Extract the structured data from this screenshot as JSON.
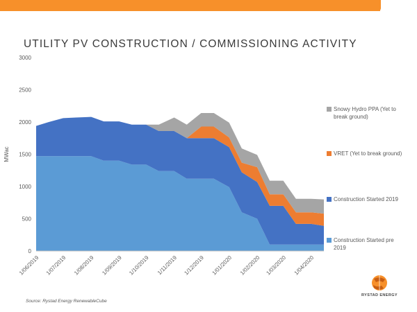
{
  "header": {
    "accent_color": "#f7902a"
  },
  "chart_data": {
    "type": "area",
    "stacked": true,
    "title": "UTILITY PV CONSTRUCTION / COMMISSIONING ACTIVITY",
    "ylabel": "MWac",
    "xlabel": "",
    "ylim": [
      0,
      3000
    ],
    "yticks": [
      0,
      500,
      1000,
      1500,
      2000,
      2500,
      3000
    ],
    "x_tick_labels": [
      "1/06/2019",
      "1/07/2019",
      "1/08/2019",
      "1/09/2019",
      "1/10/2019",
      "1/11/2019",
      "1/12/2019",
      "1/01/2020",
      "1/02/2020",
      "1/03/2020",
      "1/04/2020"
    ],
    "x": [
      "2019-06-01",
      "2019-06-15",
      "2019-07-01",
      "2019-07-15",
      "2019-08-01",
      "2019-08-15",
      "2019-09-01",
      "2019-09-15",
      "2019-10-01",
      "2019-10-15",
      "2019-11-01",
      "2019-11-15",
      "2019-12-01",
      "2019-12-15",
      "2020-01-01",
      "2020-01-15",
      "2020-02-01",
      "2020-02-15",
      "2020-03-01",
      "2020-03-15",
      "2020-04-01",
      "2020-04-15"
    ],
    "grid": false,
    "legend_position": "right",
    "series": [
      {
        "name": "Construction Started pre 2019",
        "color": "#5b9bd5",
        "values": [
          1470,
          1470,
          1470,
          1470,
          1470,
          1400,
          1400,
          1340,
          1340,
          1240,
          1240,
          1120,
          1120,
          1120,
          990,
          600,
          500,
          100,
          100,
          100,
          100,
          100
        ]
      },
      {
        "name": "Construction Started 2019",
        "color": "#4472c4",
        "values": [
          470,
          530,
          590,
          600,
          610,
          610,
          610,
          620,
          620,
          620,
          620,
          630,
          630,
          630,
          620,
          620,
          570,
          600,
          600,
          320,
          320,
          290
        ]
      },
      {
        "name": "VRET (Yet to break ground)",
        "color": "#ed7d31",
        "values": [
          0,
          0,
          0,
          0,
          0,
          0,
          0,
          0,
          0,
          0,
          0,
          0,
          180,
          180,
          150,
          150,
          230,
          180,
          180,
          180,
          180,
          190
        ]
      },
      {
        "name": "Snowy Hydro PPA (Yet to break ground)",
        "color": "#a5a5a5",
        "values": [
          0,
          0,
          0,
          0,
          0,
          0,
          0,
          0,
          0,
          100,
          210,
          210,
          210,
          210,
          230,
          220,
          190,
          210,
          210,
          210,
          210,
          220
        ]
      }
    ]
  },
  "footer": {
    "source": "Source: Rystad Energy RenewableCube",
    "logo_text": "RYSTAD ENERGY"
  }
}
